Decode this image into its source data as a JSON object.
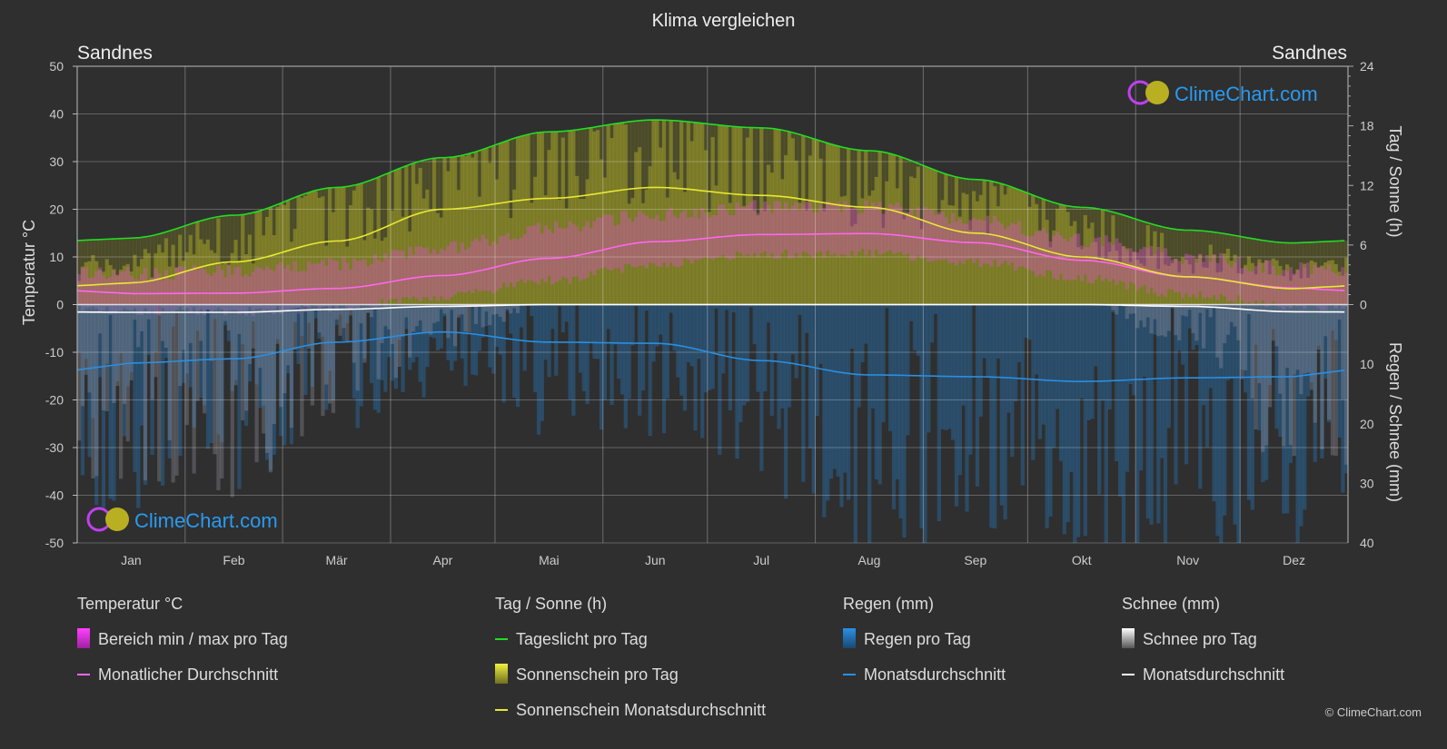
{
  "title": "Klima vergleichen",
  "city_left": "Sandnes",
  "city_right": "Sandnes",
  "watermark": "ClimeChart.com",
  "copyright": "© ClimeChart.com",
  "legend": {
    "temp": {
      "header": "Temperatur °C",
      "range": "Bereich min / max pro Tag",
      "avg": "Monatlicher Durchschnitt"
    },
    "sun": {
      "header": "Tag / Sonne (h)",
      "daylight": "Tageslicht pro Tag",
      "sunshine": "Sonnenschein pro Tag",
      "sun_avg": "Sonnenschein Monatsdurchschnitt"
    },
    "rain": {
      "header": "Regen (mm)",
      "per_day": "Regen pro Tag",
      "avg": "Monatsdurchschnitt"
    },
    "snow": {
      "header": "Schnee (mm)",
      "per_day": "Schnee pro Tag",
      "avg": "Monatsdurchschnitt"
    }
  },
  "chart_data": {
    "type": "line",
    "title": "Klima vergleichen",
    "categories": [
      "Jan",
      "Feb",
      "Mär",
      "Apr",
      "Mai",
      "Jun",
      "Jul",
      "Aug",
      "Sep",
      "Okt",
      "Nov",
      "Dez"
    ],
    "ylabel_left": "Temperatur °C",
    "ylabel_right_top": "Tag / Sonne (h)",
    "ylabel_right_bottom": "Regen / Schnee (mm)",
    "ylim_left": [
      -50,
      50
    ],
    "yticks_left": [
      50,
      40,
      30,
      20,
      10,
      0,
      -10,
      -20,
      -30,
      -40,
      -50
    ],
    "yticks_right_top": [
      24,
      18,
      12,
      6,
      0
    ],
    "yticks_right_bottom": [
      0,
      10,
      20,
      30,
      40
    ],
    "series": [
      {
        "name": "Tageslicht pro Tag",
        "unit": "h",
        "color": "#22dd22",
        "values": [
          6.7,
          9.0,
          11.8,
          14.8,
          17.4,
          18.6,
          17.8,
          15.5,
          12.6,
          9.8,
          7.5,
          6.2
        ]
      },
      {
        "name": "Sonnenschein Monatsdurchschnitt",
        "unit": "h",
        "color": "#e8e832",
        "values": [
          2.2,
          4.3,
          6.4,
          9.6,
          10.7,
          11.8,
          11.0,
          9.8,
          7.2,
          4.8,
          2.8,
          1.6
        ]
      },
      {
        "name": "Monatlicher Durchschnitt Temperatur",
        "unit": "°C",
        "color": "#ff66ee",
        "values": [
          2.3,
          2.4,
          3.4,
          6.1,
          9.7,
          13.2,
          14.7,
          14.9,
          13.0,
          9.3,
          5.8,
          3.5
        ]
      },
      {
        "name": "Temperatur min",
        "unit": "°C",
        "values": [
          -0.5,
          -0.5,
          0.3,
          2.5,
          6,
          9.5,
          11.5,
          11.8,
          9.8,
          6.5,
          3,
          0.8
        ]
      },
      {
        "name": "Temperatur max",
        "unit": "°C",
        "values": [
          5,
          5.5,
          7,
          10.5,
          14.5,
          17.5,
          19,
          19,
          16.5,
          12,
          8.5,
          6
        ]
      },
      {
        "name": "Regen Monatsdurchschnitt",
        "unit": "mm",
        "color": "#2a8fe0",
        "values": [
          9.8,
          9.1,
          6.3,
          4.6,
          6.3,
          6.5,
          9.4,
          11.8,
          12.1,
          12.9,
          12.3,
          12.1
        ]
      },
      {
        "name": "Schnee Monatsdurchschnitt",
        "unit": "mm",
        "color": "#ffffff",
        "values": [
          1.3,
          1.3,
          0.8,
          0.3,
          0,
          0,
          0,
          0,
          0,
          0,
          0.3,
          1.2
        ]
      }
    ]
  }
}
